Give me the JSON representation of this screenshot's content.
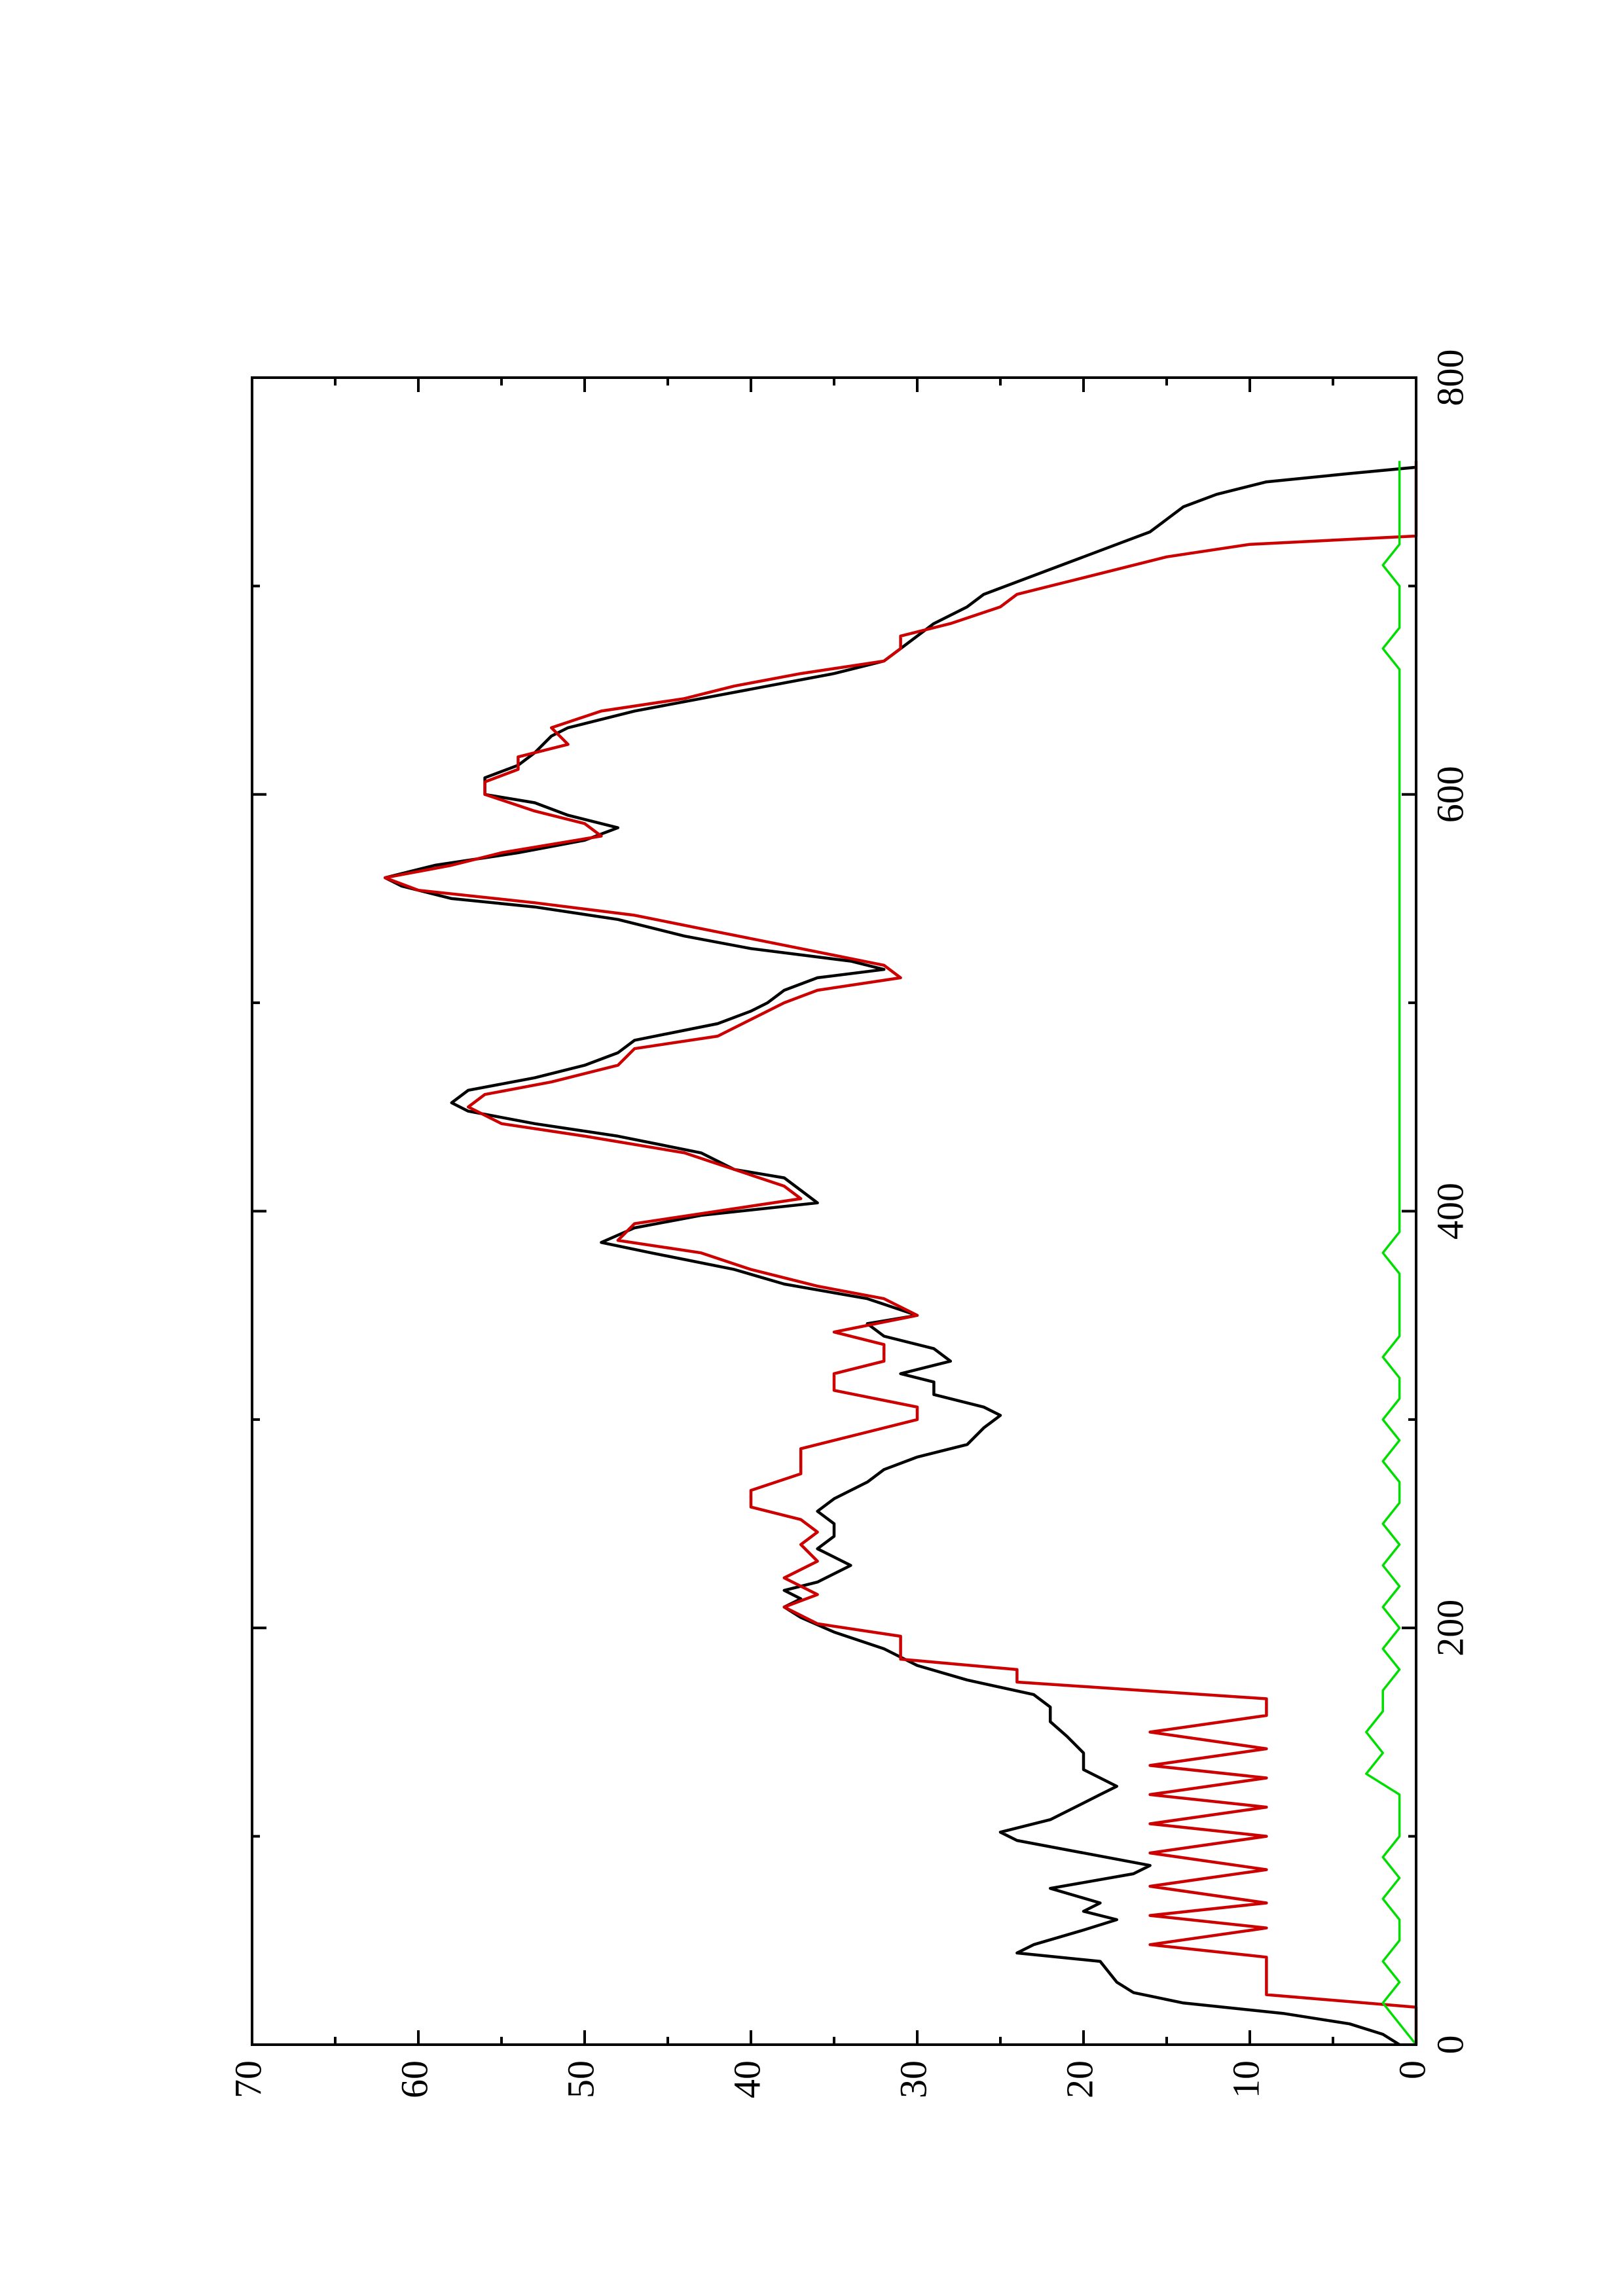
{
  "chart_data": {
    "type": "line",
    "orientation": "rotated 90 degrees counter-clockwise (x axis runs up the page on the right edge, y axis runs left along the bottom edge)",
    "title": "",
    "xlabel": "",
    "ylabel": "",
    "xlim": [
      0,
      800
    ],
    "ylim": [
      0,
      70
    ],
    "xticks": [
      0,
      200,
      400,
      600,
      800
    ],
    "xtick_labels": [
      "0",
      "200",
      "400",
      "600",
      "800"
    ],
    "x_minor_ticks": [
      100,
      300,
      500,
      700
    ],
    "yticks": [
      0,
      10,
      20,
      30,
      40,
      50,
      60,
      70
    ],
    "ytick_labels": [
      "0",
      "10",
      "20",
      "30",
      "40",
      "50",
      "60",
      "70"
    ],
    "y_minor_ticks": [
      5,
      15,
      25,
      35,
      45,
      55,
      65
    ],
    "grid": false,
    "legend": "none",
    "series": [
      {
        "color": "#000000",
        "style": "smooth",
        "points": [
          [
            0,
            1
          ],
          [
            5,
            2
          ],
          [
            10,
            4
          ],
          [
            15,
            8
          ],
          [
            20,
            14
          ],
          [
            25,
            17
          ],
          [
            30,
            18
          ],
          [
            40,
            19
          ],
          [
            44,
            24
          ],
          [
            48,
            23
          ],
          [
            55,
            20
          ],
          [
            60,
            18
          ],
          [
            64,
            20
          ],
          [
            68,
            19
          ],
          [
            75,
            22
          ],
          [
            82,
            17
          ],
          [
            86,
            16
          ],
          [
            92,
            20
          ],
          [
            98,
            24
          ],
          [
            102,
            25
          ],
          [
            108,
            22
          ],
          [
            116,
            20
          ],
          [
            120,
            19
          ],
          [
            124,
            18
          ],
          [
            128,
            19
          ],
          [
            132,
            20
          ],
          [
            140,
            20
          ],
          [
            148,
            21
          ],
          [
            155,
            22
          ],
          [
            162,
            22
          ],
          [
            168,
            23
          ],
          [
            175,
            27
          ],
          [
            182,
            30
          ],
          [
            190,
            32
          ],
          [
            198,
            35
          ],
          [
            205,
            37
          ],
          [
            210,
            38
          ],
          [
            214,
            37
          ],
          [
            218,
            38
          ],
          [
            222,
            36
          ],
          [
            230,
            34
          ],
          [
            238,
            36
          ],
          [
            244,
            35
          ],
          [
            250,
            35
          ],
          [
            256,
            36
          ],
          [
            262,
            35
          ],
          [
            266,
            34
          ],
          [
            270,
            33
          ],
          [
            276,
            32
          ],
          [
            282,
            30
          ],
          [
            288,
            27
          ],
          [
            296,
            26
          ],
          [
            302,
            25
          ],
          [
            306,
            26
          ],
          [
            312,
            29
          ],
          [
            318,
            29
          ],
          [
            322,
            31
          ],
          [
            328,
            28
          ],
          [
            334,
            29
          ],
          [
            340,
            32
          ],
          [
            346,
            33
          ],
          [
            350,
            30
          ],
          [
            358,
            33
          ],
          [
            365,
            38
          ],
          [
            372,
            41
          ],
          [
            380,
            46
          ],
          [
            385,
            49
          ],
          [
            392,
            47
          ],
          [
            398,
            43
          ],
          [
            404,
            36
          ],
          [
            410,
            37
          ],
          [
            416,
            38
          ],
          [
            420,
            41
          ],
          [
            428,
            43
          ],
          [
            436,
            48
          ],
          [
            442,
            53
          ],
          [
            448,
            57
          ],
          [
            452,
            58
          ],
          [
            458,
            57
          ],
          [
            464,
            53
          ],
          [
            470,
            50
          ],
          [
            476,
            48
          ],
          [
            482,
            47
          ],
          [
            490,
            42
          ],
          [
            496,
            40
          ],
          [
            500,
            39
          ],
          [
            506,
            38
          ],
          [
            512,
            36
          ],
          [
            516,
            32
          ],
          [
            520,
            34
          ],
          [
            526,
            40
          ],
          [
            532,
            44
          ],
          [
            540,
            48
          ],
          [
            546,
            53
          ],
          [
            550,
            58
          ],
          [
            556,
            61
          ],
          [
            560,
            62
          ],
          [
            566,
            59
          ],
          [
            572,
            54
          ],
          [
            578,
            50
          ],
          [
            584,
            48
          ],
          [
            590,
            51
          ],
          [
            596,
            53
          ],
          [
            600,
            56
          ],
          [
            608,
            56
          ],
          [
            614,
            54
          ],
          [
            620,
            53
          ],
          [
            628,
            52
          ],
          [
            632,
            51
          ],
          [
            640,
            47
          ],
          [
            646,
            43
          ],
          [
            652,
            39
          ],
          [
            658,
            35
          ],
          [
            664,
            32
          ],
          [
            670,
            31
          ],
          [
            676,
            30
          ],
          [
            682,
            29
          ],
          [
            690,
            27
          ],
          [
            696,
            26
          ],
          [
            702,
            24
          ],
          [
            708,
            22
          ],
          [
            714,
            20
          ],
          [
            720,
            18
          ],
          [
            726,
            16
          ],
          [
            732,
            15
          ],
          [
            738,
            14
          ],
          [
            744,
            12
          ],
          [
            750,
            9
          ],
          [
            754,
            4
          ],
          [
            757,
            0
          ]
        ]
      },
      {
        "color": "#cc0000",
        "style": "piecewise",
        "points": [
          [
            0,
            0
          ],
          [
            18,
            0
          ],
          [
            24,
            9
          ],
          [
            42,
            9
          ],
          [
            48,
            16
          ],
          [
            56,
            9
          ],
          [
            62,
            16
          ],
          [
            68,
            9
          ],
          [
            76,
            16
          ],
          [
            84,
            9
          ],
          [
            92,
            16
          ],
          [
            100,
            9
          ],
          [
            106,
            16
          ],
          [
            114,
            9
          ],
          [
            120,
            16
          ],
          [
            128,
            9
          ],
          [
            134,
            16
          ],
          [
            142,
            9
          ],
          [
            150,
            16
          ],
          [
            158,
            9
          ],
          [
            166,
            9
          ],
          [
            174,
            24
          ],
          [
            180,
            24
          ],
          [
            185,
            31
          ],
          [
            196,
            31
          ],
          [
            202,
            36
          ],
          [
            210,
            38
          ],
          [
            216,
            36
          ],
          [
            224,
            38
          ],
          [
            232,
            36
          ],
          [
            240,
            37
          ],
          [
            246,
            36
          ],
          [
            252,
            37
          ],
          [
            258,
            40
          ],
          [
            266,
            40
          ],
          [
            274,
            37
          ],
          [
            280,
            37
          ],
          [
            286,
            37
          ],
          [
            294,
            33
          ],
          [
            300,
            30
          ],
          [
            306,
            30
          ],
          [
            314,
            35
          ],
          [
            322,
            35
          ],
          [
            328,
            32
          ],
          [
            336,
            32
          ],
          [
            342,
            35
          ],
          [
            350,
            30
          ],
          [
            358,
            32
          ],
          [
            364,
            36
          ],
          [
            372,
            40
          ],
          [
            380,
            43
          ],
          [
            386,
            48
          ],
          [
            394,
            47
          ],
          [
            400,
            42
          ],
          [
            406,
            37
          ],
          [
            412,
            38
          ],
          [
            420,
            41
          ],
          [
            428,
            44
          ],
          [
            436,
            50
          ],
          [
            442,
            55
          ],
          [
            450,
            57
          ],
          [
            456,
            56
          ],
          [
            462,
            52
          ],
          [
            470,
            48
          ],
          [
            478,
            47
          ],
          [
            484,
            42
          ],
          [
            492,
            40
          ],
          [
            500,
            38
          ],
          [
            506,
            36
          ],
          [
            512,
            31
          ],
          [
            518,
            32
          ],
          [
            526,
            37
          ],
          [
            534,
            42
          ],
          [
            542,
            47
          ],
          [
            548,
            53
          ],
          [
            554,
            60
          ],
          [
            560,
            62
          ],
          [
            566,
            58
          ],
          [
            572,
            55
          ],
          [
            580,
            49
          ],
          [
            586,
            50
          ],
          [
            592,
            53
          ],
          [
            600,
            56
          ],
          [
            606,
            56
          ],
          [
            612,
            54
          ],
          [
            618,
            54
          ],
          [
            624,
            51
          ],
          [
            632,
            52
          ],
          [
            640,
            49
          ],
          [
            646,
            44
          ],
          [
            652,
            41
          ],
          [
            658,
            37
          ],
          [
            664,
            32
          ],
          [
            670,
            31
          ],
          [
            676,
            31
          ],
          [
            682,
            28
          ],
          [
            690,
            25
          ],
          [
            696,
            24
          ],
          [
            702,
            21
          ],
          [
            708,
            18
          ],
          [
            714,
            15
          ],
          [
            720,
            10
          ],
          [
            724,
            0
          ],
          [
            760,
            0
          ]
        ]
      },
      {
        "color": "#00dd00",
        "style": "noise",
        "points": [
          [
            0,
            0
          ],
          [
            10,
            1
          ],
          [
            20,
            2
          ],
          [
            30,
            1
          ],
          [
            40,
            2
          ],
          [
            50,
            1
          ],
          [
            60,
            1
          ],
          [
            70,
            2
          ],
          [
            80,
            1
          ],
          [
            90,
            2
          ],
          [
            100,
            1
          ],
          [
            110,
            1
          ],
          [
            120,
            1
          ],
          [
            130,
            3
          ],
          [
            140,
            2
          ],
          [
            150,
            3
          ],
          [
            160,
            2
          ],
          [
            170,
            2
          ],
          [
            180,
            1
          ],
          [
            190,
            2
          ],
          [
            200,
            1
          ],
          [
            210,
            2
          ],
          [
            220,
            1
          ],
          [
            230,
            2
          ],
          [
            240,
            1
          ],
          [
            250,
            2
          ],
          [
            260,
            1
          ],
          [
            270,
            1
          ],
          [
            280,
            2
          ],
          [
            290,
            1
          ],
          [
            300,
            2
          ],
          [
            310,
            1
          ],
          [
            320,
            1
          ],
          [
            330,
            2
          ],
          [
            340,
            1
          ],
          [
            350,
            1
          ],
          [
            360,
            1
          ],
          [
            370,
            1
          ],
          [
            380,
            2
          ],
          [
            390,
            1
          ],
          [
            400,
            1
          ],
          [
            410,
            1
          ],
          [
            420,
            1
          ],
          [
            430,
            1
          ],
          [
            440,
            1
          ],
          [
            450,
            1
          ],
          [
            460,
            1
          ],
          [
            470,
            1
          ],
          [
            480,
            1
          ],
          [
            490,
            1
          ],
          [
            500,
            1
          ],
          [
            510,
            1
          ],
          [
            520,
            1
          ],
          [
            530,
            1
          ],
          [
            540,
            1
          ],
          [
            550,
            1
          ],
          [
            560,
            1
          ],
          [
            570,
            1
          ],
          [
            580,
            1
          ],
          [
            590,
            1
          ],
          [
            600,
            1
          ],
          [
            610,
            1
          ],
          [
            620,
            1
          ],
          [
            630,
            1
          ],
          [
            640,
            1
          ],
          [
            650,
            1
          ],
          [
            660,
            1
          ],
          [
            670,
            2
          ],
          [
            680,
            1
          ],
          [
            690,
            1
          ],
          [
            700,
            1
          ],
          [
            710,
            2
          ],
          [
            720,
            1
          ],
          [
            730,
            1
          ],
          [
            740,
            1
          ],
          [
            750,
            1
          ],
          [
            760,
            1
          ]
        ]
      }
    ]
  }
}
